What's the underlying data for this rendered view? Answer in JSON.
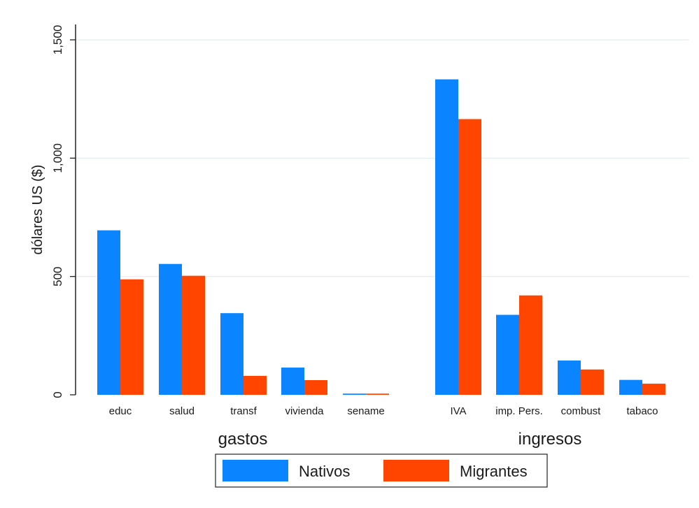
{
  "chart_data": {
    "type": "bar",
    "ylabel": "dólares US ($)",
    "ylim": [
      0,
      1500
    ],
    "yticks": [
      0,
      500,
      1000,
      1500
    ],
    "ytick_labels": [
      "0",
      "500",
      "1,000",
      "1,500"
    ],
    "grid": true,
    "legend_position": "bottom",
    "groups": [
      {
        "label": "gastos",
        "categories": [
          "educ",
          "salud",
          "transf",
          "vivienda",
          "sename"
        ]
      },
      {
        "label": "ingresos",
        "categories": [
          "IVA",
          "imp. Pers.",
          "combust",
          "tabaco"
        ]
      }
    ],
    "categories": [
      "educ",
      "salud",
      "transf",
      "vivienda",
      "sename",
      "IVA",
      "imp. Pers.",
      "combust",
      "tabaco"
    ],
    "series": [
      {
        "name": "Nativos",
        "color": "#0a84ff",
        "values": [
          695,
          553,
          345,
          115,
          5,
          1333,
          338,
          145,
          63
        ]
      },
      {
        "name": "Migrantes",
        "color": "#ff4500",
        "values": [
          488,
          503,
          80,
          62,
          5,
          1165,
          420,
          107,
          47
        ]
      }
    ]
  }
}
